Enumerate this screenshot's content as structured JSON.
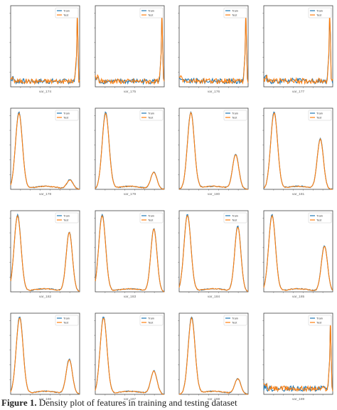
{
  "legend": {
    "train_label": "Train",
    "test_label": "Test"
  },
  "colors": {
    "train": "#1f77b4",
    "test": "#ff7f0e"
  },
  "caption": {
    "lead": "Figure 1.",
    "text": " Density plot of features in training and testing dataset"
  },
  "chart_data": [
    {
      "type": "line",
      "xlabel": "var_174",
      "shape": "noisy",
      "peak_pos": 0.97,
      "series": [
        {
          "name": "Train"
        },
        {
          "name": "Test"
        }
      ]
    },
    {
      "type": "line",
      "xlabel": "var_175",
      "shape": "noisy",
      "peak_pos": 0.97,
      "series": [
        {
          "name": "Train"
        },
        {
          "name": "Test"
        }
      ]
    },
    {
      "type": "line",
      "xlabel": "var_176",
      "shape": "noisy",
      "peak_pos": 0.97,
      "series": [
        {
          "name": "Train"
        },
        {
          "name": "Test"
        }
      ]
    },
    {
      "type": "line",
      "xlabel": "var_177",
      "shape": "noisy",
      "peak_pos": 0.96,
      "series": [
        {
          "name": "Train"
        },
        {
          "name": "Test"
        }
      ]
    },
    {
      "type": "line",
      "xlabel": "var_178",
      "shape": "bimodal",
      "m1": 0.12,
      "m2": 0.86,
      "a2": 0.12,
      "series": [
        {
          "name": "Train"
        },
        {
          "name": "Test"
        }
      ]
    },
    {
      "type": "line",
      "xlabel": "var_179",
      "shape": "bimodal",
      "m1": 0.15,
      "m2": 0.85,
      "a2": 0.22,
      "series": [
        {
          "name": "Train"
        },
        {
          "name": "Test"
        }
      ]
    },
    {
      "type": "line",
      "xlabel": "var_180",
      "shape": "bimodal",
      "m1": 0.17,
      "m2": 0.82,
      "a2": 0.45,
      "series": [
        {
          "name": "Train"
        },
        {
          "name": "Test"
        }
      ]
    },
    {
      "type": "line",
      "xlabel": "var_181",
      "shape": "bimodal",
      "m1": 0.15,
      "m2": 0.82,
      "a2": 0.65,
      "series": [
        {
          "name": "Train"
        },
        {
          "name": "Test"
        }
      ]
    },
    {
      "type": "line",
      "xlabel": "var_182",
      "shape": "bimodal",
      "m1": 0.1,
      "m2": 0.85,
      "a2": 0.78,
      "series": [
        {
          "name": "Train"
        },
        {
          "name": "Test"
        }
      ]
    },
    {
      "type": "line",
      "xlabel": "var_183",
      "shape": "bimodal",
      "m1": 0.1,
      "m2": 0.85,
      "a2": 0.82,
      "series": [
        {
          "name": "Train"
        },
        {
          "name": "Test"
        }
      ]
    },
    {
      "type": "line",
      "xlabel": "var_184",
      "shape": "bimodal",
      "m1": 0.12,
      "m2": 0.85,
      "a2": 0.85,
      "series": [
        {
          "name": "Train"
        },
        {
          "name": "Test"
        }
      ]
    },
    {
      "type": "line",
      "xlabel": "var_185",
      "shape": "bimodal",
      "m1": 0.12,
      "m2": 0.88,
      "a2": 0.6,
      "series": [
        {
          "name": "Train"
        },
        {
          "name": "Test"
        }
      ]
    },
    {
      "type": "line",
      "xlabel": "var_186",
      "shape": "bimodal",
      "m1": 0.13,
      "m2": 0.85,
      "a2": 0.45,
      "series": [
        {
          "name": "Train"
        },
        {
          "name": "Test"
        }
      ]
    },
    {
      "type": "line",
      "xlabel": "var_187",
      "shape": "bimodal",
      "m1": 0.12,
      "m2": 0.85,
      "a2": 0.3,
      "series": [
        {
          "name": "Train"
        },
        {
          "name": "Test"
        }
      ]
    },
    {
      "type": "line",
      "xlabel": "var_188",
      "shape": "bimodal",
      "m1": 0.18,
      "m2": 0.85,
      "a2": 0.2,
      "series": [
        {
          "name": "Train"
        },
        {
          "name": "Test"
        }
      ]
    },
    {
      "type": "line",
      "xlabel": "var_189",
      "shape": "noisy",
      "peak_pos": 0.97,
      "series": [
        {
          "name": "Train"
        },
        {
          "name": "Test"
        }
      ]
    }
  ]
}
